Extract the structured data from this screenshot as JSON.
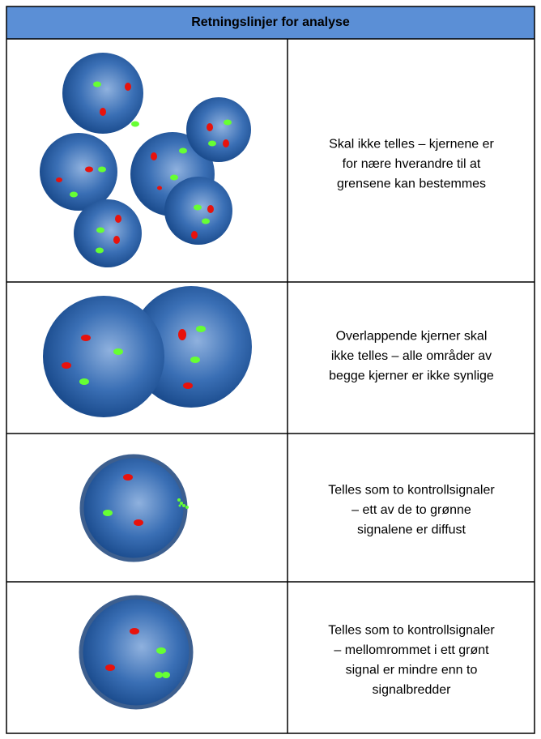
{
  "header": {
    "title": "Retningslinjer for analyse"
  },
  "table": {
    "rows": [
      {
        "text": [
          "Skal ikke telles – kjernene er",
          "for nære hverandre til at",
          "grensene kan bestemmes"
        ]
      },
      {
        "text": [
          "Overlappende kjerner skal",
          "ikke telles – alle områder av",
          "begge kjerner er ikke synlige"
        ]
      },
      {
        "text": [
          "Telles som to kontrollsignaler",
          "– ett av de to grønne",
          "signalene er diffust"
        ]
      },
      {
        "text": [
          "Telles som to kontrollsignaler",
          "– mellomrommet i ett grønt",
          "signal er mindre enn to",
          "signalbredder"
        ]
      }
    ]
  }
}
